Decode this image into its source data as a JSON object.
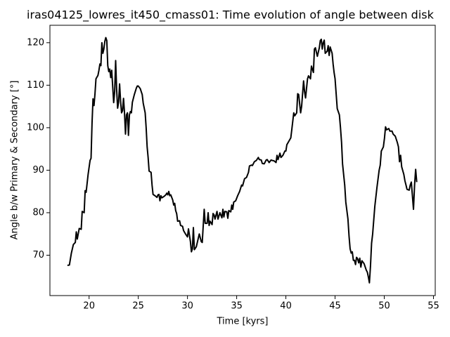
{
  "chart_data": {
    "type": "line",
    "title": "iras04125_lowres_it450_cmass01: Time evolution of angle between disk",
    "xlabel": "Time [kyrs]",
    "ylabel": "Angle b/w Primary & Secondary [°]",
    "xlim": [
      16.02,
      55.18
    ],
    "xticks": [
      20,
      25,
      30,
      35,
      40,
      45,
      50,
      55
    ],
    "ylim": [
      60.5,
      124.1
    ],
    "yticks": [
      70,
      80,
      90,
      100,
      110,
      120
    ],
    "grid": false,
    "series": [
      {
        "color": "#000000",
        "x": [
          17.8,
          18.0,
          18.2,
          18.4,
          18.6,
          18.7,
          18.8,
          19.0,
          19.2,
          19.3,
          19.5,
          19.6,
          19.7,
          19.9,
          20.1,
          20.2,
          20.3,
          20.4,
          20.5,
          20.6,
          20.7,
          20.9,
          21.0,
          21.1,
          21.2,
          21.3,
          21.4,
          21.5,
          21.6,
          21.7,
          21.8,
          21.9,
          22.0,
          22.1,
          22.2,
          22.3,
          22.5,
          22.6,
          22.7,
          22.8,
          22.9,
          23.0,
          23.1,
          23.2,
          23.3,
          23.4,
          23.5,
          23.6,
          23.7,
          23.8,
          23.9,
          24.0,
          24.1,
          24.2,
          24.3,
          24.4,
          24.6,
          24.8,
          24.9,
          25.0,
          25.2,
          25.4,
          25.5,
          25.7,
          25.8,
          25.9,
          26.0,
          26.1,
          26.3,
          26.4,
          26.5,
          26.7,
          26.9,
          27.0,
          27.1,
          27.2,
          27.3,
          27.4,
          27.6,
          27.8,
          27.9,
          28.0,
          28.1,
          28.2,
          28.3,
          28.5,
          28.6,
          28.7,
          28.8,
          28.9,
          29.0,
          29.2,
          29.3,
          29.5,
          29.6,
          29.8,
          30.0,
          30.1,
          30.3,
          30.4,
          30.5,
          30.6,
          30.7,
          30.9,
          31.0,
          31.2,
          31.4,
          31.5,
          31.7,
          31.8,
          32.0,
          32.1,
          32.2,
          32.3,
          32.5,
          32.6,
          32.7,
          32.8,
          33.0,
          33.1,
          33.3,
          33.5,
          33.6,
          33.7,
          33.8,
          34.0,
          34.1,
          34.2,
          34.4,
          34.5,
          34.6,
          34.7,
          34.9,
          35.1,
          35.3,
          35.5,
          35.6,
          35.8,
          36.0,
          36.2,
          36.3,
          36.5,
          36.6,
          36.8,
          37.0,
          37.2,
          37.3,
          37.5,
          37.6,
          37.8,
          38.0,
          38.1,
          38.3,
          38.5,
          38.6,
          38.8,
          39.0,
          39.1,
          39.2,
          39.4,
          39.5,
          39.7,
          39.9,
          40.0,
          40.1,
          40.3,
          40.5,
          40.6,
          40.8,
          40.9,
          41.1,
          41.2,
          41.3,
          41.5,
          41.6,
          41.8,
          41.9,
          42.0,
          42.2,
          42.3,
          42.5,
          42.6,
          42.8,
          42.9,
          43.0,
          43.2,
          43.4,
          43.5,
          43.6,
          43.7,
          43.8,
          43.9,
          44.0,
          44.2,
          44.3,
          44.4,
          44.5,
          44.7,
          44.8,
          44.9,
          45.0,
          45.11,
          45.22,
          45.44,
          45.55,
          45.66,
          45.76,
          45.98,
          46.09,
          46.31,
          46.42,
          46.53,
          46.64,
          46.75,
          46.86,
          46.97,
          47.08,
          47.18,
          47.29,
          47.4,
          47.51,
          47.62,
          47.73,
          47.95,
          48.17,
          48.28,
          48.39,
          48.49,
          48.6,
          48.71,
          48.82,
          49.04,
          49.26,
          49.48,
          49.59,
          49.7,
          49.91,
          50.02,
          50.13,
          50.24,
          50.46,
          50.57,
          50.79,
          50.9,
          51.12,
          51.33,
          51.44,
          51.55,
          51.66,
          51.77,
          51.99,
          52.1,
          52.21,
          52.31,
          52.53,
          52.64,
          52.75,
          52.97,
          53.08,
          53.19,
          53.3
        ],
        "values": [
          67.6,
          67.7,
          70.5,
          72.5,
          73,
          75.5,
          73.8,
          76.3,
          76.1,
          80.3,
          80,
          85.2,
          84.8,
          89,
          92.3,
          92.8,
          101,
          106.8,
          105.2,
          108,
          111.5,
          112.3,
          113.5,
          115,
          114.6,
          120,
          117.5,
          118.5,
          120.3,
          121.2,
          120.5,
          114.6,
          113.2,
          113.8,
          111.8,
          113.5,
          105.9,
          108.5,
          115.8,
          109,
          104.6,
          106,
          110.3,
          106.3,
          103.5,
          104,
          106.9,
          103.5,
          98.5,
          103,
          103.5,
          98.2,
          103,
          103.8,
          103.5,
          106,
          107.8,
          109.3,
          109.8,
          109.8,
          109.2,
          107.8,
          105.8,
          103.5,
          100,
          95.5,
          93,
          89.8,
          89.5,
          86.5,
          84.3,
          84,
          83.6,
          84.2,
          84.3,
          82.8,
          84,
          83.5,
          83.8,
          84.2,
          84.6,
          84.2,
          85,
          84,
          84.2,
          83,
          81.8,
          82.2,
          80.5,
          79.8,
          78,
          78.1,
          77,
          76.8,
          75.8,
          75,
          74.3,
          76.2,
          73.2,
          70.8,
          71.5,
          76.5,
          71.3,
          72,
          73,
          75,
          73.2,
          73,
          80.8,
          77.5,
          77.5,
          80,
          77,
          78,
          77.2,
          79.8,
          79.5,
          78.5,
          80.3,
          78.5,
          80,
          78.8,
          80.8,
          79,
          80.3,
          80.2,
          78.7,
          80.5,
          80.2,
          81.8,
          80.8,
          82.5,
          82.8,
          84,
          85,
          86.5,
          86.3,
          88,
          88.3,
          89.5,
          91,
          91.2,
          91.1,
          92,
          92.3,
          93,
          92.5,
          92.4,
          91.6,
          91.5,
          92.4,
          92.5,
          91.8,
          92.4,
          92.3,
          92.2,
          91.8,
          93.5,
          92.5,
          94,
          93,
          93.5,
          94.5,
          94.5,
          96,
          96.8,
          97.6,
          99.5,
          103.5,
          102.8,
          103.5,
          108,
          107.8,
          103.5,
          105,
          111,
          108.5,
          107,
          111.5,
          112.2,
          111.5,
          114.5,
          113,
          118.5,
          118.8,
          116.8,
          118.8,
          120.5,
          120.8,
          118.5,
          120,
          120.6,
          117.5,
          118,
          119.3,
          117,
          119,
          117.5,
          115,
          113,
          111.5,
          108,
          104.5,
          103,
          100,
          96.5,
          91.5,
          86.5,
          82.5,
          78.5,
          74.5,
          71.5,
          70.5,
          70.8,
          68.8,
          68.8,
          67.8,
          69.5,
          69.2,
          68.2,
          69.3,
          67.2,
          68.7,
          68,
          66.5,
          66,
          64.8,
          63.5,
          67.5,
          72.8,
          75,
          81.5,
          86,
          90,
          91.2,
          94.5,
          95.5,
          97.5,
          100.2,
          99.5,
          99.8,
          99.2,
          99.2,
          98.5,
          98,
          96.5,
          95.5,
          92,
          93.5,
          90.8,
          89,
          87.5,
          86.5,
          85.5,
          85.3,
          86.5,
          87.2,
          80.8,
          86.5,
          90.2,
          87.2
        ]
      }
    ]
  }
}
